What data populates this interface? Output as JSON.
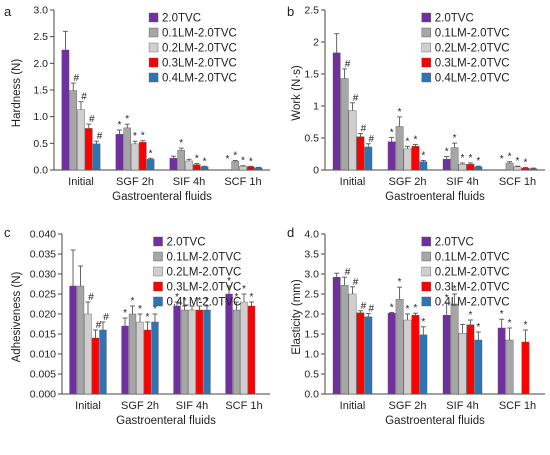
{
  "colors": {
    "series": [
      "#7030A0",
      "#A6A6A6",
      "#D0CECE",
      "#FF0000",
      "#2E75B6"
    ],
    "axis": "#444444",
    "error_bar": "#555555",
    "text": "#222222"
  },
  "chart_data": [
    {
      "panel": "a",
      "type": "bar",
      "categories": [
        "Initial",
        "SGF 2h",
        "SIF 4h",
        "SCF 1h"
      ],
      "xlabel": "Gastroenteral fluids",
      "ylabel": "Hardness (N)",
      "ylim": [
        0,
        3.0
      ],
      "yticks": [
        "0.0",
        "0.5",
        "1.0",
        "1.5",
        "2.0",
        "2.5",
        "3.0"
      ],
      "legend_position": "top-right",
      "series": [
        {
          "name": "2.0TVC",
          "values": [
            2.25,
            0.67,
            0.22,
            0.0
          ],
          "errors": [
            0.35,
            0.08,
            0.04,
            0.0
          ],
          "annotations": [
            "",
            "*",
            "",
            "*"
          ]
        },
        {
          "name": "0.1LM-2.0TVC",
          "values": [
            1.49,
            0.79,
            0.37,
            0.16
          ],
          "errors": [
            0.14,
            0.07,
            0.04,
            0.02
          ],
          "annotations": [
            "#",
            "*",
            "*",
            "*"
          ]
        },
        {
          "name": "0.2LM-2.0TVC",
          "values": [
            1.13,
            0.49,
            0.17,
            0.07
          ],
          "errors": [
            0.15,
            0.05,
            0.03,
            0.01
          ],
          "annotations": [
            "#",
            "*",
            "",
            "*"
          ]
        },
        {
          "name": "0.3LM-2.0TVC",
          "values": [
            0.78,
            0.52,
            0.1,
            0.06
          ],
          "errors": [
            0.08,
            0.03,
            0.02,
            0.01
          ],
          "annotations": [
            "#",
            "*",
            "*",
            "*"
          ]
        },
        {
          "name": "0.4LM-2.0TVC",
          "values": [
            0.49,
            0.2,
            0.06,
            0.04
          ],
          "errors": [
            0.05,
            0.02,
            0.01,
            0.01
          ],
          "annotations": [
            "#",
            "*",
            "*",
            ""
          ]
        }
      ]
    },
    {
      "panel": "b",
      "type": "bar",
      "categories": [
        "Initial",
        "SGF 2h",
        "SIF 4h",
        "SCF 1h"
      ],
      "xlabel": "Gastroenteral fluids",
      "ylabel": "Work (N·s)",
      "ylim": [
        0,
        2.5
      ],
      "yticks": [
        "0",
        "0.5",
        "1",
        "1.5",
        "2",
        "2.5"
      ],
      "legend_position": "top-right",
      "series": [
        {
          "name": "2.0TVC",
          "values": [
            1.83,
            0.44,
            0.17,
            0.0
          ],
          "errors": [
            0.3,
            0.07,
            0.04,
            0.0
          ],
          "annotations": [
            "",
            "*",
            "*",
            "*"
          ]
        },
        {
          "name": "0.1LM-2.0TVC",
          "values": [
            1.43,
            0.68,
            0.35,
            0.11
          ],
          "errors": [
            0.15,
            0.15,
            0.07,
            0.02
          ],
          "annotations": [
            "#",
            "*",
            "*",
            "*"
          ]
        },
        {
          "name": "0.2LM-2.0TVC",
          "values": [
            0.93,
            0.33,
            0.09,
            0.05
          ],
          "errors": [
            0.12,
            0.04,
            0.02,
            0.01
          ],
          "annotations": [
            "#",
            "*",
            "*",
            "*"
          ]
        },
        {
          "name": "0.3LM-2.0TVC",
          "values": [
            0.52,
            0.37,
            0.09,
            0.03
          ],
          "errors": [
            0.05,
            0.03,
            0.02,
            0.01
          ],
          "annotations": [
            "#",
            "*",
            "*",
            "*"
          ]
        },
        {
          "name": "0.4LM-2.0TVC",
          "values": [
            0.36,
            0.13,
            0.05,
            0.02
          ],
          "errors": [
            0.05,
            0.02,
            0.01,
            0.01
          ],
          "annotations": [
            "#",
            "*",
            "*",
            ""
          ]
        }
      ]
    },
    {
      "panel": "c",
      "type": "bar",
      "categories": [
        "Initial",
        "SGF 2h",
        "SIF 4h",
        "SCF 1h"
      ],
      "xlabel": "Gastroenteral fluids",
      "ylabel": "Adhesiveness (N)",
      "ylim": [
        0,
        0.04
      ],
      "yticks": [
        "0.000",
        "0.005",
        "0.010",
        "0.015",
        "0.020",
        "0.025",
        "0.030",
        "0.035",
        "0.040"
      ],
      "legend_position": "top-right",
      "series": [
        {
          "name": "2.0TVC",
          "values": [
            0.027,
            0.017,
            0.022,
            0.025
          ],
          "errors": [
            0.009,
            0.002,
            0.001,
            0.002
          ],
          "annotations": [
            "",
            "*",
            "*",
            "*"
          ]
        },
        {
          "name": "0.1LM-2.0TVC",
          "values": [
            0.027,
            0.02,
            0.021,
            0.021
          ],
          "errors": [
            0.005,
            0.002,
            0.001,
            0.002
          ],
          "annotations": [
            "",
            "*",
            "*",
            "*"
          ]
        },
        {
          "name": "0.2LM-2.0TVC",
          "values": [
            0.02,
            0.018,
            0.021,
            0.023
          ],
          "errors": [
            0.003,
            0.002,
            0.001,
            0.002
          ],
          "annotations": [
            "#",
            "*",
            "",
            "*"
          ]
        },
        {
          "name": "0.3LM-2.0TVC",
          "values": [
            0.014,
            0.016,
            0.021,
            0.022
          ],
          "errors": [
            0.002,
            0.002,
            0.001,
            0.001
          ],
          "annotations": [
            "#",
            "*",
            "*",
            "*"
          ]
        },
        {
          "name": "0.4LM-2.0TVC",
          "values": [
            0.016,
            0.018,
            0.021,
            0.0
          ],
          "errors": [
            0.002,
            0.002,
            0.001,
            0.0
          ],
          "annotations": [
            "#",
            "*",
            "*",
            ""
          ]
        }
      ]
    },
    {
      "panel": "d",
      "type": "bar",
      "categories": [
        "Initial",
        "SGF 2h",
        "SIF 4h",
        "SCF 1h"
      ],
      "xlabel": "Gastroenteral fluids",
      "ylabel": "Elasticity (mm)",
      "ylim": [
        0,
        4.0
      ],
      "yticks": [
        "0.0",
        "0.5",
        "1.0",
        "1.5",
        "2.0",
        "2.5",
        "3.0",
        "3.5",
        "4.0"
      ],
      "legend_position": "top-right",
      "series": [
        {
          "name": "2.0TVC",
          "values": [
            2.92,
            2.02,
            1.97,
            1.65
          ],
          "errors": [
            0.1,
            0.02,
            0.3,
            0.22
          ],
          "annotations": [
            "",
            "*",
            "*",
            "*"
          ]
        },
        {
          "name": "0.1LM-2.0TVC",
          "values": [
            2.72,
            2.37,
            2.25,
            1.35
          ],
          "errors": [
            0.2,
            0.3,
            0.25,
            0.3
          ],
          "annotations": [
            "#",
            "*",
            "*",
            "*"
          ]
        },
        {
          "name": "0.2LM-2.0TVC",
          "values": [
            2.5,
            1.85,
            1.52,
            0.0
          ],
          "errors": [
            0.18,
            0.15,
            0.22,
            0.0
          ],
          "annotations": [
            "#",
            "*",
            "",
            ""
          ]
        },
        {
          "name": "0.3LM-2.0TVC",
          "values": [
            2.03,
            1.97,
            1.73,
            1.3
          ],
          "errors": [
            0.05,
            0.05,
            0.12,
            0.3
          ],
          "annotations": [
            "#",
            "*",
            "*",
            "*"
          ]
        },
        {
          "name": "0.4LM-2.0TVC",
          "values": [
            1.93,
            1.48,
            1.35,
            0.0
          ],
          "errors": [
            0.08,
            0.2,
            0.2,
            0.0
          ],
          "annotations": [
            "#",
            "*",
            "*",
            ""
          ]
        }
      ]
    }
  ]
}
